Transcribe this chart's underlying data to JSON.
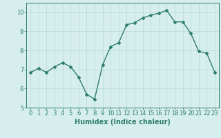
{
  "x": [
    0,
    1,
    2,
    3,
    4,
    5,
    6,
    7,
    8,
    9,
    10,
    11,
    12,
    13,
    14,
    15,
    16,
    17,
    18,
    19,
    20,
    21,
    22,
    23
  ],
  "y": [
    6.85,
    7.05,
    6.85,
    7.15,
    7.35,
    7.15,
    6.6,
    5.7,
    5.45,
    7.25,
    8.2,
    8.4,
    9.35,
    9.45,
    9.7,
    9.85,
    9.95,
    10.1,
    9.5,
    9.5,
    8.9,
    7.95,
    7.85,
    6.85
  ],
  "xlabel": "Humidex (Indice chaleur)",
  "ylim": [
    5,
    10.5
  ],
  "xlim": [
    -0.5,
    23.5
  ],
  "xticks": [
    0,
    1,
    2,
    3,
    4,
    5,
    6,
    7,
    8,
    9,
    10,
    11,
    12,
    13,
    14,
    15,
    16,
    17,
    18,
    19,
    20,
    21,
    22,
    23
  ],
  "yticks": [
    5,
    6,
    7,
    8,
    9,
    10
  ],
  "line_color": "#2e7d6e",
  "marker": "D",
  "marker_size": 2.0,
  "bg_color": "#d6eeee",
  "grid_color": "#b8d8d8",
  "tick_color": "#2e7d6e",
  "label_color": "#2e7d6e",
  "xlabel_fontsize": 7,
  "tick_fontsize": 6,
  "line_width": 1.0
}
